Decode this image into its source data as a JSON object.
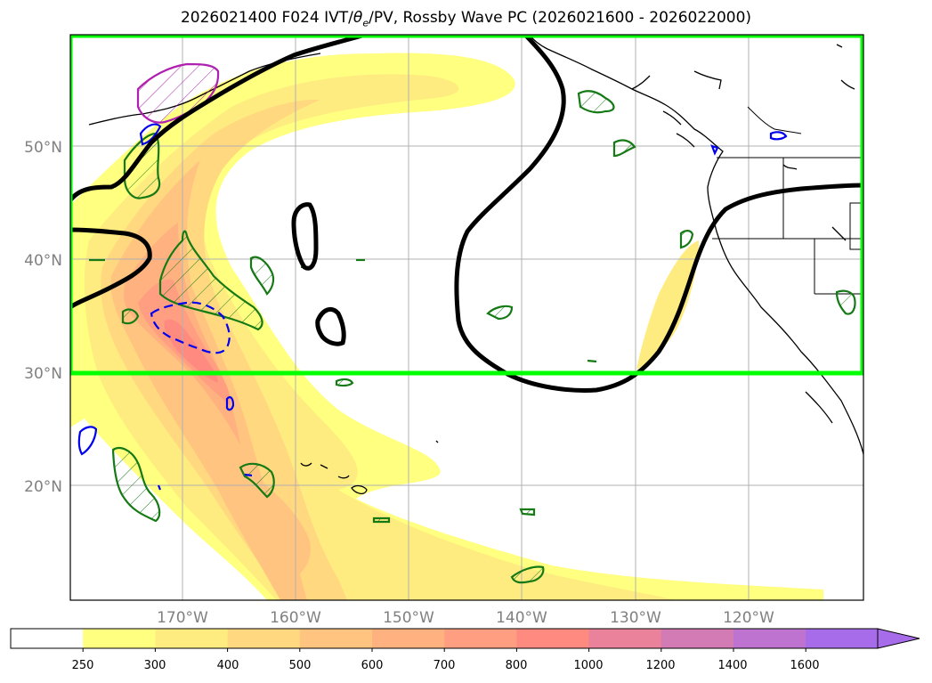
{
  "title": {
    "prefix": "2026021400 F024 IVT/",
    "theta": "θ",
    "theta_sub": "e",
    "suffix": "/PV, Rossby Wave PC (2026021600 - 2026022000)"
  },
  "map": {
    "lat_labels": [
      "50°N",
      "40°N",
      "30°N",
      "20°N"
    ],
    "lon_labels": [
      "170°W",
      "160°W",
      "150°W",
      "140°W",
      "130°W",
      "120°W"
    ],
    "box_color": "#00ff00",
    "fill_colors": [
      "#ffff80",
      "#ffec80",
      "#ffd880",
      "#ffc580",
      "#ffb180",
      "#ff9e80",
      "#ff8a80",
      "#e9829a",
      "#d37bb4",
      "#bd73cf",
      "#a76ce9"
    ]
  },
  "colorbar": {
    "ticks": [
      "250",
      "300",
      "400",
      "500",
      "600",
      "700",
      "800",
      "1000",
      "1200",
      "1400",
      "1600"
    ],
    "colors": [
      "#ffffff",
      "#ffff80",
      "#ffec80",
      "#ffd880",
      "#ffc580",
      "#ffb180",
      "#ff9e80",
      "#ff8a80",
      "#e9829a",
      "#d37bb4",
      "#bd73cf",
      "#a76ce9"
    ]
  }
}
